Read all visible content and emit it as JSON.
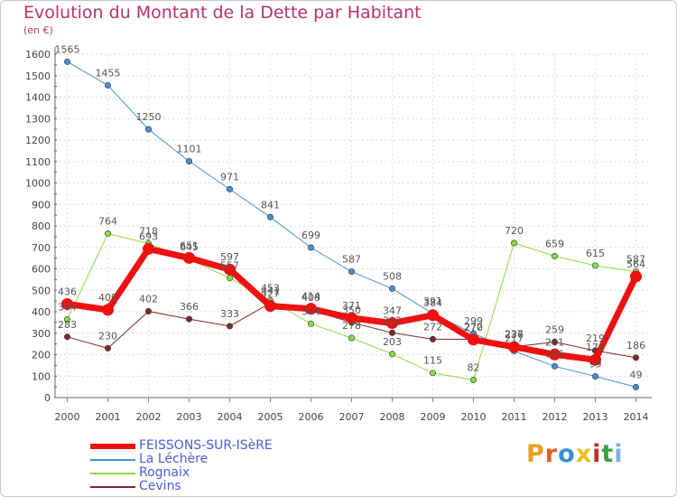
{
  "title": "Evolution du Montant de la Dette par Habitant",
  "unit_label": "(en €)",
  "logo": {
    "text": "Proxiti",
    "letter_colors": [
      "#e8a020",
      "#e06020",
      "#3a8fd0",
      "#e8c020",
      "#c03030",
      "#3aa040",
      "#80b0e0"
    ]
  },
  "chart_data": {
    "type": "line",
    "x": [
      2000,
      2001,
      2002,
      2003,
      2004,
      2005,
      2006,
      2007,
      2008,
      2009,
      2010,
      2011,
      2012,
      2013,
      2014
    ],
    "ylim": [
      0,
      1600
    ],
    "yticks": [
      0,
      100,
      200,
      300,
      400,
      500,
      600,
      700,
      800,
      900,
      1000,
      1100,
      1200,
      1300,
      1400,
      1500,
      1600
    ],
    "grid": true,
    "legend_position": "bottom-left",
    "series": [
      {
        "name": "La Léchère",
        "color": "#4a90d0",
        "width": 1,
        "values": [
          1565,
          1455,
          1250,
          1101,
          971,
          841,
          699,
          587,
          508,
          391,
          299,
          217,
          146,
          99,
          49
        ],
        "labels": [
          "1565",
          "1455",
          "1250",
          "1101",
          "971",
          "841",
          "699",
          "587",
          "508",
          "391",
          "299",
          "217",
          "146",
          "99",
          "49"
        ]
      },
      {
        "name": "Rognaix",
        "color": "#88dd44",
        "width": 1,
        "values": [
          364,
          764,
          718,
          645,
          557,
          453,
          344,
          278,
          203,
          115,
          82,
          720,
          659,
          615,
          587
        ],
        "labels": [
          "364",
          "764",
          "718",
          "645",
          "557",
          "453",
          "344",
          "278",
          "203",
          "115",
          "82",
          "720",
          "659",
          "615",
          "587"
        ]
      },
      {
        "name": "Cevins",
        "color": "#7a2a2a",
        "width": 1,
        "values": [
          283,
          230,
          402,
          366,
          333,
          441,
          408,
          350,
          302,
          272,
          272,
          237,
          259,
          219,
          186
        ],
        "labels": [
          "283",
          "230",
          "402",
          "366",
          "333",
          "441",
          "408",
          "350",
          "302",
          "272",
          "272",
          "237",
          "259",
          "219",
          "186"
        ]
      },
      {
        "name": "FEISSONS-SUR-ISèRE",
        "color": "#ee1111",
        "width": 7,
        "values": [
          436,
          409,
          693,
          651,
          597,
          427,
          414,
          371,
          347,
          384,
          270,
          236,
          201,
          176,
          564
        ],
        "labels": [
          "436",
          "409",
          "693",
          "651",
          "597",
          "427",
          "414",
          "371",
          "347",
          "384",
          "270",
          "236",
          "201",
          "176",
          "564"
        ]
      }
    ]
  },
  "legend": [
    {
      "name": "FEISSONS-SUR-ISèRE",
      "color": "#ee1111"
    },
    {
      "name": "La Léchère",
      "color": "#4a90d0"
    },
    {
      "name": "Rognaix",
      "color": "#88dd44"
    },
    {
      "name": "Cevins",
      "color": "#7a2a2a"
    }
  ]
}
